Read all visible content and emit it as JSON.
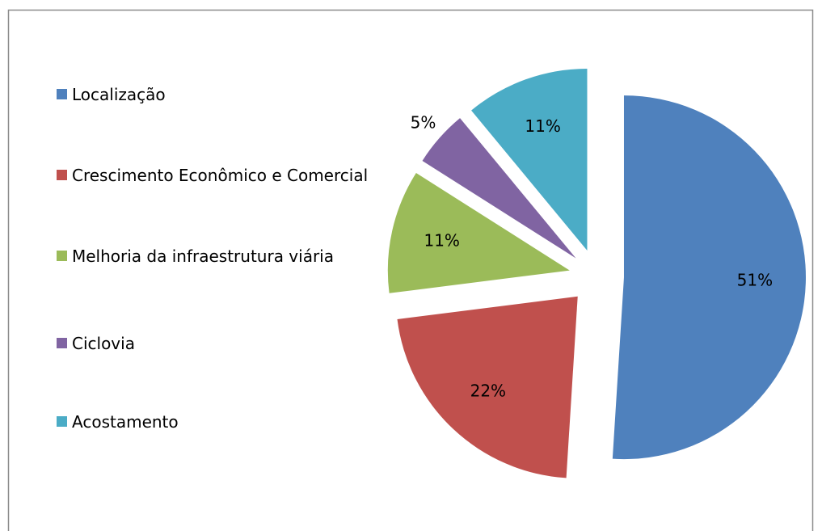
{
  "chart_data": {
    "type": "pie",
    "categories": [
      "Localização",
      "Crescimento Econômico e Comercial",
      "Melhoria da infraestrutura viária",
      "Ciclovia",
      "Acostamento"
    ],
    "values": [
      51,
      22,
      11,
      5,
      11
    ],
    "value_labels": [
      "51%",
      "22%",
      "11%",
      "5%",
      "11%"
    ],
    "colors": [
      "#4f81bd",
      "#c0504d",
      "#9bbb59",
      "#8064a2",
      "#4bacc6"
    ],
    "legend": "left"
  }
}
